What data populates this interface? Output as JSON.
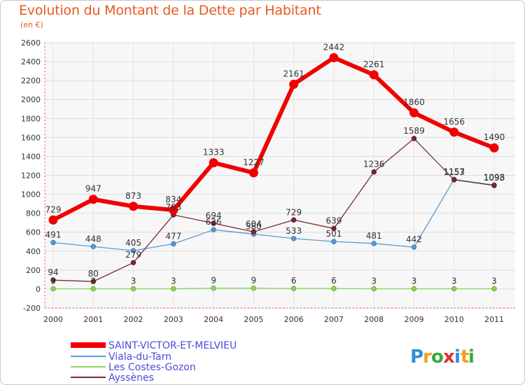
{
  "header": {
    "title": "Evolution du Montant de la Dette par Habitant",
    "subtitle": "(en €)"
  },
  "logo": {
    "text": "Proxiti",
    "letters": [
      {
        "char": "P",
        "color": "#2f8fd8"
      },
      {
        "char": "r",
        "color": "#f0a020"
      },
      {
        "char": "o",
        "color": "#3aa83a"
      },
      {
        "char": "x",
        "color": "#e03030"
      },
      {
        "char": "i",
        "color": "#2f8fd8"
      },
      {
        "char": "t",
        "color": "#f0a020"
      },
      {
        "char": "i",
        "color": "#3aa83a"
      }
    ]
  },
  "chart_data": {
    "type": "line",
    "title": "Evolution du Montant de la Dette par Habitant",
    "subtitle": "(en €)",
    "xlabel": "",
    "ylabel": "",
    "ylim": [
      -200,
      2600
    ],
    "yticks": [
      -200,
      0,
      200,
      400,
      600,
      800,
      1000,
      1200,
      1400,
      1600,
      1800,
      2000,
      2200,
      2400,
      2600
    ],
    "grid": true,
    "legend_position": "bottom-left",
    "categories": [
      "2000",
      "2001",
      "2002",
      "2003",
      "2004",
      "2005",
      "2006",
      "2007",
      "2008",
      "2009",
      "2010",
      "2011"
    ],
    "series": [
      {
        "name": "SAINT-VICTOR-ET-MELVIEU",
        "color": "#f00000",
        "values": [
          729,
          947,
          873,
          834,
          1333,
          1227,
          2161,
          2442,
          2261,
          1860,
          1656,
          1490
        ]
      },
      {
        "name": "Viala-du-Tarn",
        "color": "#5c9ad0",
        "values": [
          491,
          448,
          405,
          477,
          626,
          580,
          533,
          501,
          481,
          442,
          1157,
          1098
        ]
      },
      {
        "name": "Les Costes-Gozon",
        "color": "#8fd65a",
        "values": [
          3,
          3,
          3,
          3,
          9,
          9,
          6,
          6,
          3,
          3,
          3,
          3
        ]
      },
      {
        "name": "Ayssènes",
        "color": "#7a2a33",
        "values": [
          94,
          80,
          279,
          783,
          694,
          604,
          729,
          639,
          1236,
          1589,
          1153,
          1093
        ]
      }
    ]
  }
}
